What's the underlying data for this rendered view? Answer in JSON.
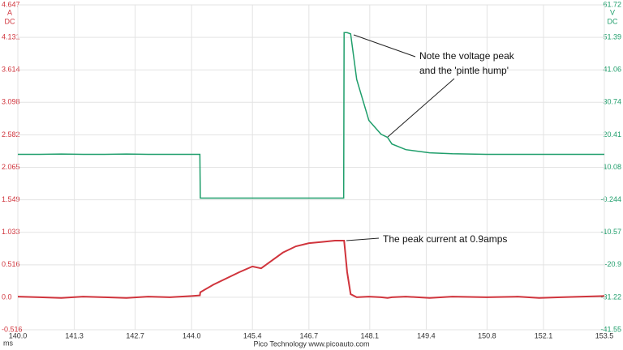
{
  "chart_data": {
    "type": "line",
    "x_unit": "ms",
    "y_unit": "A",
    "y_coupling": "DC",
    "y2_unit": "V",
    "y2_coupling": "DC",
    "footer": "Pico Technology  www.picoauto.com",
    "annotations": [
      "Note the voltage peak",
      "and the 'pintle hump'",
      "The peak current at 0.9amps"
    ],
    "grid": true,
    "x": [
      140.0,
      140.5,
      141.0,
      141.5,
      142.0,
      142.5,
      143.0,
      143.5,
      144.0,
      144.19,
      144.2,
      144.5,
      144.8,
      145.1,
      145.4,
      145.6,
      145.8,
      146.1,
      146.4,
      146.7,
      147.0,
      147.3,
      147.5,
      147.51,
      147.58,
      147.66,
      147.8,
      148.08,
      148.36,
      148.51,
      148.61,
      148.93,
      149.48,
      150.0,
      150.79,
      151.5,
      152.0,
      152.5,
      153.0,
      153.5
    ],
    "series": [
      {
        "color": "#1f9e6b",
        "axis": "y2",
        "values": [
          14.2,
          14.2,
          14.3,
          14.2,
          14.2,
          14.3,
          14.2,
          14.2,
          14.2,
          14.2,
          0.3,
          0.3,
          0.3,
          0.3,
          0.3,
          0.3,
          0.3,
          0.3,
          0.3,
          0.3,
          0.3,
          0.3,
          0.3,
          52.9,
          52.9,
          52.5,
          38,
          25,
          20.6,
          19.6,
          17.5,
          15.7,
          14.7,
          14.4,
          14.2,
          14.2,
          14.2,
          14.2,
          14.2,
          14.2
        ]
      },
      {
        "color": "#d0343c",
        "values": [
          0.01,
          0.0,
          -0.01,
          0.01,
          0.0,
          -0.01,
          0.01,
          0.0,
          0.02,
          0.03,
          0.08,
          0.2,
          0.3,
          0.4,
          0.49,
          0.46,
          0.56,
          0.71,
          0.81,
          0.86,
          0.88,
          0.9,
          0.9,
          0.9,
          0.4,
          0.05,
          0.0,
          0.01,
          0.0,
          -0.01,
          0.0,
          0.01,
          -0.01,
          0.01,
          0.0,
          0.01,
          -0.01,
          0.0,
          0.01,
          0.02
        ]
      }
    ],
    "xlim": [
      140.0,
      153.5
    ],
    "xticks": [
      {
        "value": 140.0,
        "label": "140.0"
      },
      141.3,
      142.7,
      {
        "value": 144.0,
        "label": "144.0"
      },
      145.4,
      146.7,
      148.1,
      149.4,
      150.8,
      152.1,
      153.5
    ],
    "ylim": [
      -0.516,
      4.647
    ],
    "yticks": [
      -0.516,
      {
        "value": 0,
        "label": "0.0"
      },
      0.516,
      1.033,
      1.549,
      2.065,
      2.582,
      3.098,
      3.614,
      4.131,
      4.647
    ],
    "y2lim": [
      -41.55,
      61.72
    ],
    "y2ticks": [
      -41.55,
      -31.22,
      -20.9,
      -10.57,
      -0.244,
      10.08,
      20.41,
      30.74,
      41.06,
      51.39,
      61.72
    ]
  }
}
